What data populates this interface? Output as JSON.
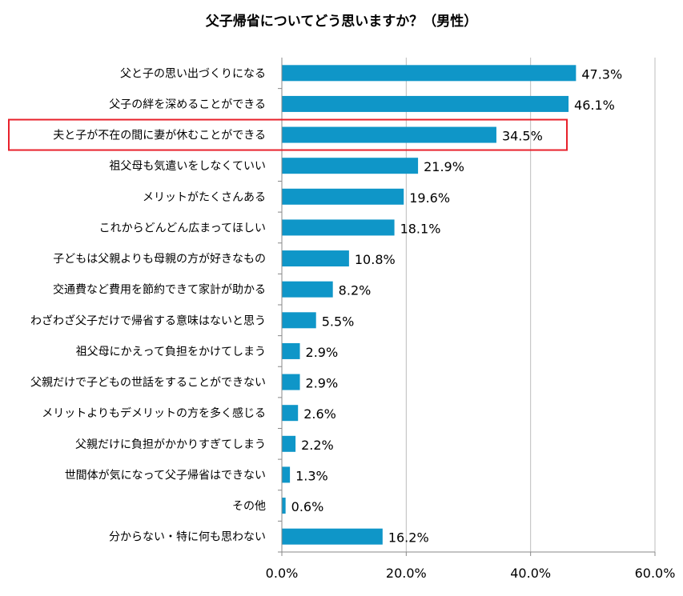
{
  "chart_data": {
    "type": "bar",
    "orientation": "horizontal",
    "title": "父子帰省についてどう思いますか？（男性）",
    "categories": [
      "父と子の思い出づくりになる",
      "父子の絆を深めることができる",
      "夫と子が不在の間に妻が休むことができる",
      "祖父母も気遣いをしなくていい",
      "メリットがたくさんある",
      "これからどんどん広まってほしい",
      "子どもは父親よりも母親の方が好きなもの",
      "交通費など費用を節約できて家計が助かる",
      "わざわざ父子だけで帰省する意味はないと思う",
      "祖父母にかえって負担をかけてしまう",
      "父親だけで子どもの世話をすることができない",
      "メリットよりもデメリットの方を多く感じる",
      "父親だけに負担がかかりすぎてしまう",
      "世間体が気になって父子帰省はできない",
      "その他",
      "分からない・特に何も思わない"
    ],
    "values": [
      47.3,
      46.1,
      34.5,
      21.9,
      19.6,
      18.1,
      10.8,
      8.2,
      5.5,
      2.9,
      2.9,
      2.6,
      2.2,
      1.3,
      0.6,
      16.2
    ],
    "value_labels": [
      "47.3%",
      "46.1%",
      "34.5%",
      "21.9%",
      "19.6%",
      "18.1%",
      "10.8%",
      "8.2%",
      "5.5%",
      "2.9%",
      "2.9%",
      "2.6%",
      "2.2%",
      "1.3%",
      "0.6%",
      "16.2%"
    ],
    "xlim": [
      0,
      60
    ],
    "xticks": [
      0,
      20,
      40,
      60
    ],
    "xtick_labels": [
      "0.0%",
      "20.0%",
      "40.0%",
      "60.0%"
    ],
    "grid": true,
    "highlighted_category_index": 2,
    "bar_color": "#0f96c8",
    "highlight_color": "#e8212b"
  }
}
